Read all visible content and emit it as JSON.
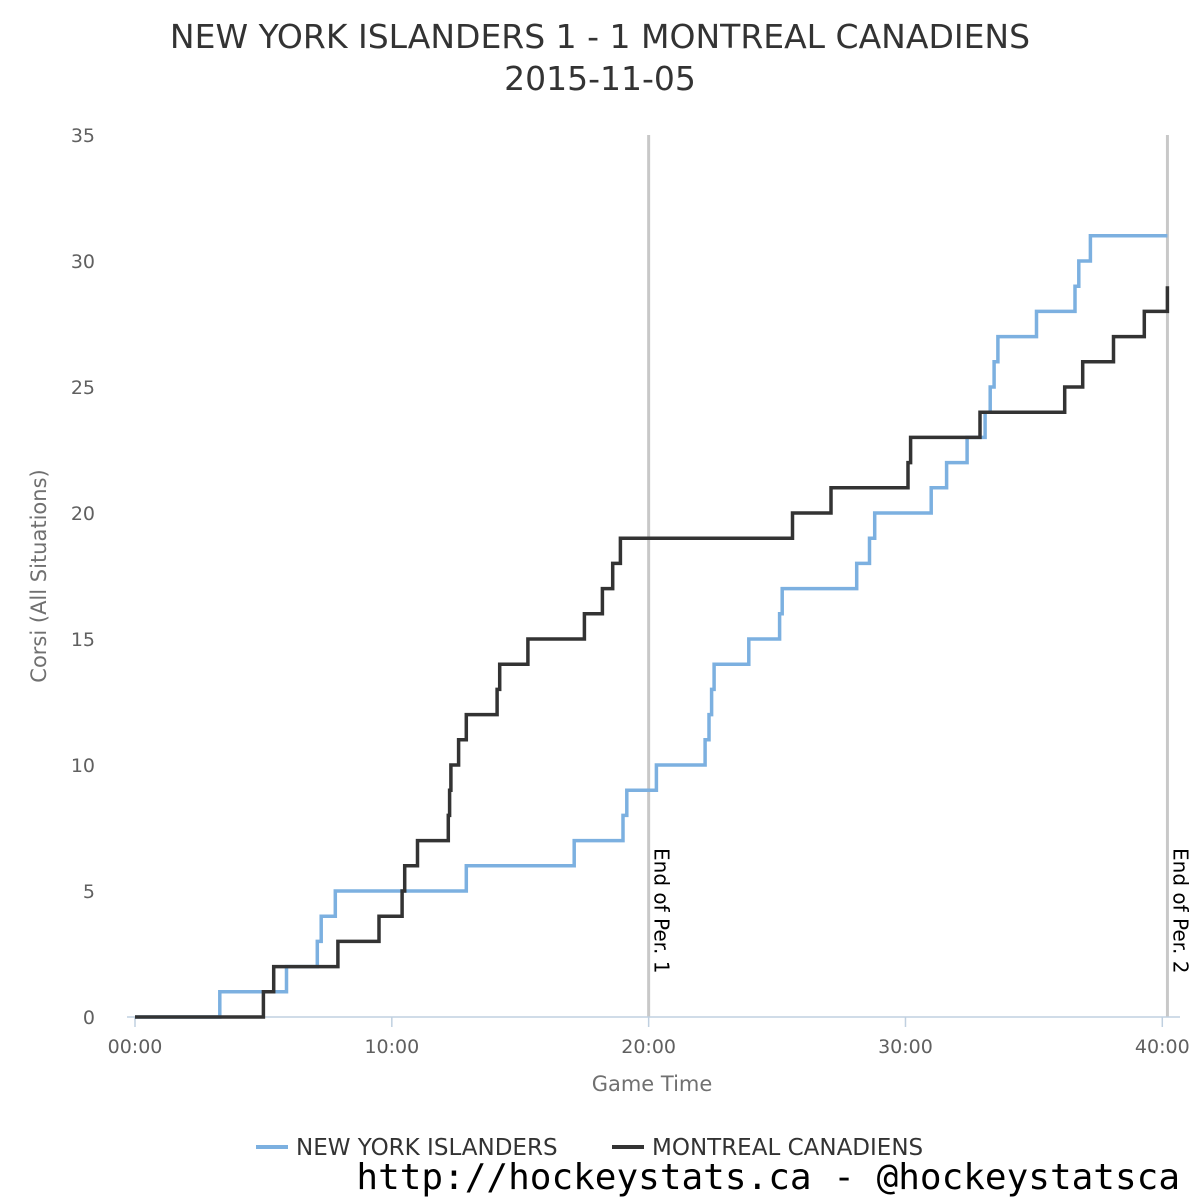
{
  "chart_data": {
    "type": "line",
    "step": true,
    "title": "NEW YORK ISLANDERS 1 - 1 MONTREAL CANADIENS",
    "subtitle": "2015-11-05",
    "xlabel": "Game Time",
    "ylabel": "Corsi (All Situations)",
    "xlim": [
      0,
      40.3
    ],
    "ylim": [
      0,
      35
    ],
    "x_unit": "minutes",
    "x_ticks": [
      0,
      10,
      20,
      30,
      40
    ],
    "x_tick_labels": [
      "00:00",
      "10:00",
      "20:00",
      "30:00",
      "40:00"
    ],
    "y_ticks": [
      0,
      5,
      10,
      15,
      20,
      25,
      30,
      35
    ],
    "y_tick_labels": [
      "0",
      "5",
      "10",
      "15",
      "20",
      "25",
      "30",
      "35"
    ],
    "grid": false,
    "legend_position": "bottom-center",
    "plot_lines": [
      {
        "x": 20,
        "label": "End of Per. 1",
        "color": "#c8c8c8"
      },
      {
        "x": 40.2,
        "label": "End of Per. 2",
        "color": "#c8c8c8"
      }
    ],
    "series": [
      {
        "name": "NEW YORK ISLANDERS",
        "color": "#7cb0e0",
        "points": [
          [
            0,
            0
          ],
          [
            3.3,
            1
          ],
          [
            5.9,
            2
          ],
          [
            7.1,
            3
          ],
          [
            7.25,
            4
          ],
          [
            7.8,
            5
          ],
          [
            12.9,
            6
          ],
          [
            17.1,
            7
          ],
          [
            19.0,
            8
          ],
          [
            19.15,
            9
          ],
          [
            20.3,
            10
          ],
          [
            22.2,
            11
          ],
          [
            22.35,
            12
          ],
          [
            22.45,
            13
          ],
          [
            22.55,
            14
          ],
          [
            23.9,
            15
          ],
          [
            25.1,
            16
          ],
          [
            25.2,
            17
          ],
          [
            28.1,
            18
          ],
          [
            28.6,
            19
          ],
          [
            28.8,
            20
          ],
          [
            31.0,
            21
          ],
          [
            31.6,
            22
          ],
          [
            32.4,
            23
          ],
          [
            33.1,
            24
          ],
          [
            33.3,
            25
          ],
          [
            33.45,
            26
          ],
          [
            33.6,
            27
          ],
          [
            35.1,
            28
          ],
          [
            36.6,
            29
          ],
          [
            36.75,
            30
          ],
          [
            37.2,
            31
          ],
          [
            40.2,
            31
          ]
        ]
      },
      {
        "name": "MONTREAL CANADIENS",
        "color": "#333333",
        "points": [
          [
            0,
            0
          ],
          [
            5.0,
            1
          ],
          [
            5.4,
            2
          ],
          [
            7.9,
            3
          ],
          [
            9.5,
            4
          ],
          [
            10.4,
            5
          ],
          [
            10.5,
            6
          ],
          [
            11.0,
            7
          ],
          [
            12.2,
            8
          ],
          [
            12.25,
            9
          ],
          [
            12.3,
            10
          ],
          [
            12.6,
            11
          ],
          [
            12.9,
            12
          ],
          [
            14.1,
            13
          ],
          [
            14.2,
            14
          ],
          [
            15.3,
            15
          ],
          [
            17.5,
            16
          ],
          [
            18.2,
            17
          ],
          [
            18.6,
            18
          ],
          [
            18.9,
            19
          ],
          [
            25.6,
            20
          ],
          [
            27.1,
            21
          ],
          [
            30.1,
            22
          ],
          [
            30.2,
            23
          ],
          [
            32.9,
            24
          ],
          [
            36.2,
            25
          ],
          [
            36.9,
            26
          ],
          [
            38.1,
            27
          ],
          [
            39.3,
            28
          ],
          [
            40.2,
            29
          ]
        ]
      }
    ]
  },
  "credit_text": "http://hockeystats.ca - @hockeystatsca"
}
